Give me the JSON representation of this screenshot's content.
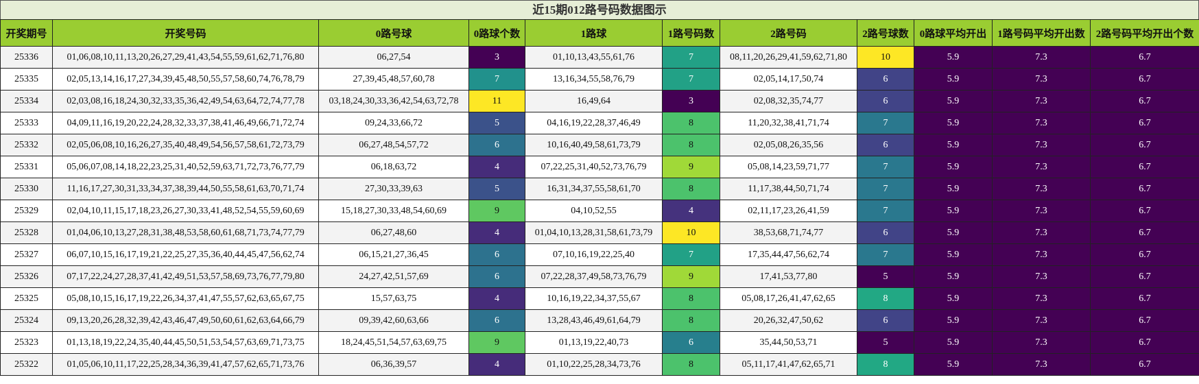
{
  "title": "近15期012路号码数据图示",
  "columns": [
    "开奖期号",
    "开奖号码",
    "0路号球",
    "0路球个数",
    "1路球",
    "1路号码数",
    "2路号码",
    "2路号球数",
    "0路球平均开出",
    "1路号码平均开出数",
    "2路号码平均开出个数"
  ],
  "colormap": "viridis",
  "heat_columns": [
    3,
    5,
    7,
    8,
    9,
    10
  ],
  "rows": [
    [
      25336,
      "01,06,08,10,11,13,20,26,27,29,41,43,54,55,59,61,62,71,76,80",
      "06,27,54",
      3,
      "01,10,13,43,55,61,76",
      7,
      "08,11,20,26,29,41,59,62,71,80",
      10,
      5.9,
      7.3,
      6.7
    ],
    [
      25335,
      "02,05,13,14,16,17,27,34,39,45,48,50,55,57,58,60,74,76,78,79",
      "27,39,45,48,57,60,78",
      7,
      "13,16,34,55,58,76,79",
      7,
      "02,05,14,17,50,74",
      6,
      5.9,
      7.3,
      6.7
    ],
    [
      25334,
      "02,03,08,16,18,24,30,32,33,35,36,42,49,54,63,64,72,74,77,78",
      "03,18,24,30,33,36,42,54,63,72,78",
      11,
      "16,49,64",
      3,
      "02,08,32,35,74,77",
      6,
      5.9,
      7.3,
      6.7
    ],
    [
      25333,
      "04,09,11,16,19,20,22,24,28,32,33,37,38,41,46,49,66,71,72,74",
      "09,24,33,66,72",
      5,
      "04,16,19,22,28,37,46,49",
      8,
      "11,20,32,38,41,71,74",
      7,
      5.9,
      7.3,
      6.7
    ],
    [
      25332,
      "02,05,06,08,10,16,26,27,35,40,48,49,54,56,57,58,61,72,73,79",
      "06,27,48,54,57,72",
      6,
      "10,16,40,49,58,61,73,79",
      8,
      "02,05,08,26,35,56",
      6,
      5.9,
      7.3,
      6.7
    ],
    [
      25331,
      "05,06,07,08,14,18,22,23,25,31,40,52,59,63,71,72,73,76,77,79",
      "06,18,63,72",
      4,
      "07,22,25,31,40,52,73,76,79",
      9,
      "05,08,14,23,59,71,77",
      7,
      5.9,
      7.3,
      6.7
    ],
    [
      25330,
      "11,16,17,27,30,31,33,34,37,38,39,44,50,55,58,61,63,70,71,74",
      "27,30,33,39,63",
      5,
      "16,31,34,37,55,58,61,70",
      8,
      "11,17,38,44,50,71,74",
      7,
      5.9,
      7.3,
      6.7
    ],
    [
      25329,
      "02,04,10,11,15,17,18,23,26,27,30,33,41,48,52,54,55,59,60,69",
      "15,18,27,30,33,48,54,60,69",
      9,
      "04,10,52,55",
      4,
      "02,11,17,23,26,41,59",
      7,
      5.9,
      7.3,
      6.7
    ],
    [
      25328,
      "01,04,06,10,13,27,28,31,38,48,53,58,60,61,68,71,73,74,77,79",
      "06,27,48,60",
      4,
      "01,04,10,13,28,31,58,61,73,79",
      10,
      "38,53,68,71,74,77",
      6,
      5.9,
      7.3,
      6.7
    ],
    [
      25327,
      "06,07,10,15,16,17,19,21,22,25,27,35,36,40,44,45,47,56,62,74",
      "06,15,21,27,36,45",
      6,
      "07,10,16,19,22,25,40",
      7,
      "17,35,44,47,56,62,74",
      7,
      5.9,
      7.3,
      6.7
    ],
    [
      25326,
      "07,17,22,24,27,28,37,41,42,49,51,53,57,58,69,73,76,77,79,80",
      "24,27,42,51,57,69",
      6,
      "07,22,28,37,49,58,73,76,79",
      9,
      "17,41,53,77,80",
      5,
      5.9,
      7.3,
      6.7
    ],
    [
      25325,
      "05,08,10,15,16,17,19,22,26,34,37,41,47,55,57,62,63,65,67,75",
      "15,57,63,75",
      4,
      "10,16,19,22,34,37,55,67",
      8,
      "05,08,17,26,41,47,62,65",
      8,
      5.9,
      7.3,
      6.7
    ],
    [
      25324,
      "09,13,20,26,28,32,39,42,43,46,47,49,50,60,61,62,63,64,66,79",
      "09,39,42,60,63,66",
      6,
      "13,28,43,46,49,61,64,79",
      8,
      "20,26,32,47,50,62",
      6,
      5.9,
      7.3,
      6.7
    ],
    [
      25323,
      "01,13,18,19,22,24,35,40,44,45,50,51,53,54,57,63,69,71,73,75",
      "18,24,45,51,54,57,63,69,75",
      9,
      "01,13,19,22,40,73",
      6,
      "35,44,50,53,71",
      5,
      5.9,
      7.3,
      6.7
    ],
    [
      25322,
      "01,05,06,10,11,17,22,25,28,34,36,39,41,47,57,62,65,71,73,76",
      "06,36,39,57",
      4,
      "01,10,22,25,28,34,73,76",
      8,
      "05,11,17,41,47,62,65,71",
      8,
      5.9,
      7.3,
      6.7
    ]
  ]
}
